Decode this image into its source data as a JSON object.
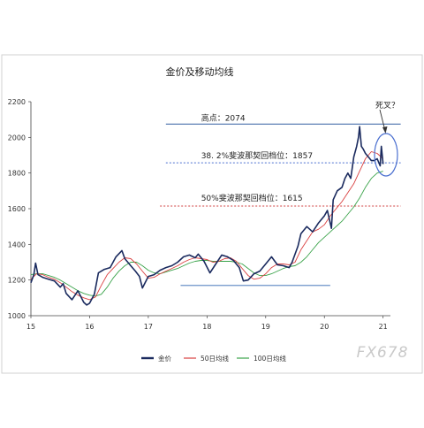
{
  "chart_data": {
    "type": "line",
    "title": "金价及移动均线",
    "xlabel": "",
    "ylabel": "",
    "xlim": [
      15,
      21.05
    ],
    "ylim": [
      1000,
      2200
    ],
    "x_ticks": [
      "15",
      "16",
      "17",
      "18",
      "19",
      "20",
      "21"
    ],
    "x_tick_values": [
      15,
      16,
      17,
      18,
      19,
      20,
      21
    ],
    "y_ticks": [
      "1000",
      "1200",
      "1400",
      "1600",
      "1800",
      "2000",
      "2200"
    ],
    "y_tick_values": [
      1000,
      1200,
      1400,
      1600,
      1800,
      2000,
      2200
    ],
    "grid": false,
    "legend_position": "bottom",
    "series": [
      {
        "name": "金价",
        "color": "#1a2a5e",
        "x": [
          15.0,
          15.05,
          15.08,
          15.12,
          15.2,
          15.3,
          15.4,
          15.5,
          15.55,
          15.6,
          15.7,
          15.8,
          15.9,
          15.95,
          16.0,
          16.08,
          16.15,
          16.25,
          16.35,
          16.45,
          16.55,
          16.6,
          16.7,
          16.78,
          16.85,
          16.9,
          17.0,
          17.1,
          17.2,
          17.3,
          17.4,
          17.5,
          17.6,
          17.7,
          17.8,
          17.85,
          17.95,
          18.05,
          18.15,
          18.25,
          18.35,
          18.45,
          18.55,
          18.62,
          18.7,
          18.8,
          18.9,
          19.0,
          19.1,
          19.2,
          19.3,
          19.4,
          19.45,
          19.55,
          19.6,
          19.7,
          19.8,
          19.9,
          20.0,
          20.05,
          20.12,
          20.15,
          20.22,
          20.3,
          20.35,
          20.4,
          20.45,
          20.5,
          20.55,
          20.58,
          20.6,
          20.63,
          20.66,
          20.7,
          20.75,
          20.8,
          20.85,
          20.9,
          20.95,
          20.97,
          21.0
        ],
        "y": [
          1185,
          1230,
          1295,
          1230,
          1215,
          1205,
          1195,
          1160,
          1180,
          1125,
          1090,
          1140,
          1075,
          1060,
          1070,
          1120,
          1240,
          1260,
          1270,
          1330,
          1365,
          1320,
          1280,
          1250,
          1220,
          1155,
          1220,
          1230,
          1255,
          1270,
          1280,
          1300,
          1330,
          1340,
          1325,
          1345,
          1305,
          1240,
          1290,
          1340,
          1330,
          1310,
          1270,
          1195,
          1200,
          1235,
          1250,
          1290,
          1330,
          1285,
          1280,
          1270,
          1300,
          1390,
          1460,
          1500,
          1470,
          1520,
          1560,
          1590,
          1490,
          1650,
          1700,
          1720,
          1770,
          1800,
          1770,
          1890,
          1950,
          2000,
          2060,
          1950,
          1935,
          1910,
          1890,
          1870,
          1870,
          1880,
          1840,
          1950,
          1850
        ]
      },
      {
        "name": "50日均线",
        "color": "#d94040",
        "x": [
          15.0,
          15.1,
          15.2,
          15.3,
          15.4,
          15.5,
          15.6,
          15.7,
          15.8,
          15.9,
          16.0,
          16.1,
          16.2,
          16.3,
          16.4,
          16.5,
          16.6,
          16.7,
          16.8,
          16.9,
          17.0,
          17.1,
          17.2,
          17.3,
          17.4,
          17.5,
          17.6,
          17.7,
          17.8,
          17.9,
          18.0,
          18.1,
          18.2,
          18.3,
          18.4,
          18.5,
          18.6,
          18.7,
          18.8,
          18.9,
          19.0,
          19.1,
          19.2,
          19.3,
          19.4,
          19.5,
          19.6,
          19.7,
          19.8,
          19.9,
          20.0,
          20.1,
          20.2,
          20.3,
          20.4,
          20.5,
          20.6,
          20.7,
          20.8,
          20.9,
          21.0
        ],
        "y": [
          1205,
          1235,
          1230,
          1215,
          1205,
          1185,
          1160,
          1135,
          1115,
          1100,
          1090,
          1105,
          1170,
          1230,
          1265,
          1300,
          1325,
          1320,
          1290,
          1250,
          1210,
          1215,
          1235,
          1250,
          1265,
          1280,
          1300,
          1315,
          1325,
          1320,
          1315,
          1300,
          1305,
          1320,
          1325,
          1305,
          1265,
          1225,
          1205,
          1210,
          1235,
          1270,
          1290,
          1290,
          1285,
          1300,
          1370,
          1420,
          1470,
          1485,
          1510,
          1560,
          1600,
          1640,
          1690,
          1740,
          1810,
          1880,
          1920,
          1910,
          1880
        ]
      },
      {
        "name": "100日均线",
        "color": "#3aa34a",
        "x": [
          15.0,
          15.1,
          15.2,
          15.3,
          15.4,
          15.5,
          15.6,
          15.7,
          15.8,
          15.9,
          16.0,
          16.1,
          16.2,
          16.3,
          16.4,
          16.5,
          16.6,
          16.7,
          16.8,
          16.9,
          17.0,
          17.1,
          17.2,
          17.3,
          17.4,
          17.5,
          17.6,
          17.7,
          17.8,
          17.9,
          18.0,
          18.1,
          18.2,
          18.3,
          18.4,
          18.5,
          18.6,
          18.7,
          18.8,
          18.9,
          19.0,
          19.1,
          19.2,
          19.3,
          19.4,
          19.5,
          19.6,
          19.7,
          19.8,
          19.9,
          20.0,
          20.1,
          20.2,
          20.3,
          20.4,
          20.5,
          20.6,
          20.7,
          20.8,
          20.9,
          21.0
        ],
        "y": [
          1230,
          1235,
          1235,
          1225,
          1215,
          1200,
          1180,
          1160,
          1140,
          1125,
          1115,
          1110,
          1120,
          1160,
          1210,
          1250,
          1280,
          1300,
          1300,
          1280,
          1255,
          1240,
          1235,
          1245,
          1255,
          1265,
          1280,
          1295,
          1305,
          1310,
          1310,
          1305,
          1305,
          1305,
          1305,
          1300,
          1290,
          1265,
          1240,
          1225,
          1225,
          1235,
          1250,
          1265,
          1275,
          1280,
          1300,
          1330,
          1370,
          1410,
          1440,
          1470,
          1500,
          1530,
          1570,
          1610,
          1660,
          1720,
          1770,
          1800,
          1810
        ]
      }
    ],
    "annotations": [
      {
        "label": "高点：2074",
        "y": 2074
      },
      {
        "label": "38. 2%斐波那契回档位：1857",
        "y": 1857
      },
      {
        "label": "50%斐波那契回档位：1615",
        "y": 1615
      },
      {
        "label": "死叉？"
      }
    ]
  },
  "watermark": "FX678"
}
